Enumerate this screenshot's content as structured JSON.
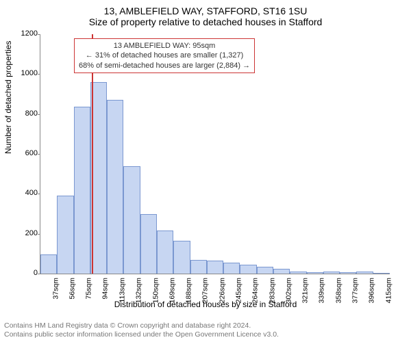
{
  "titles": {
    "line1": "13, AMBLEFIELD WAY, STAFFORD, ST16 1SU",
    "line2": "Size of property relative to detached houses in Stafford"
  },
  "chart": {
    "type": "histogram",
    "ylabel": "Number of detached properties",
    "xlabel": "Distribution of detached houses by size in Stafford",
    "ylim": [
      0,
      1200
    ],
    "ytick_step": 200,
    "yticks": [
      0,
      200,
      400,
      600,
      800,
      1000,
      1200
    ],
    "x_categories": [
      "37sqm",
      "56sqm",
      "75sqm",
      "94sqm",
      "113sqm",
      "132sqm",
      "150sqm",
      "169sqm",
      "188sqm",
      "207sqm",
      "226sqm",
      "245sqm",
      "264sqm",
      "283sqm",
      "302sqm",
      "321sqm",
      "339sqm",
      "358sqm",
      "377sqm",
      "396sqm",
      "415sqm"
    ],
    "values": [
      95,
      390,
      835,
      960,
      870,
      540,
      300,
      215,
      165,
      70,
      65,
      55,
      45,
      35,
      25,
      12,
      8,
      12,
      8,
      12,
      5
    ],
    "bar_fill": "#c7d6f2",
    "bar_stroke": "#7a97d0",
    "background_color": "#ffffff",
    "axis_color": "#888888",
    "text_color": "#000000",
    "marker": {
      "index": 3,
      "color": "#cc3333"
    },
    "bar_gap_ratio": 0.0
  },
  "annotation": {
    "border_color": "#cc3333",
    "lines": {
      "l1": "13 AMBLEFIELD WAY: 95sqm",
      "l2": "← 31% of detached houses are smaller (1,327)",
      "l3": "68% of semi-detached houses are larger (2,884) →"
    }
  },
  "footer": {
    "line1": "Contains HM Land Registry data © Crown copyright and database right 2024.",
    "line2": "Contains public sector information licensed under the Open Government Licence v3.0."
  }
}
